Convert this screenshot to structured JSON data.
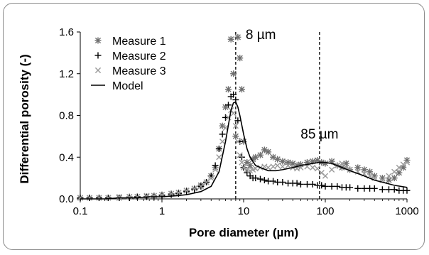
{
  "chart_data": {
    "type": "scatter",
    "title": "",
    "xlabel": "Pore diameter (µm)",
    "ylabel": "Differential porosity (-)",
    "xscale": "log",
    "xlim": [
      0.1,
      1000
    ],
    "ylim": [
      0,
      1.6
    ],
    "x_ticks": [
      "0.1",
      "1",
      "10",
      "100",
      "1000"
    ],
    "y_ticks": [
      "0.0",
      "0.4",
      "0.8",
      "1.2",
      "1.6"
    ],
    "grid": false,
    "legend_position": "top-left",
    "annotations": [
      {
        "text": "8 µm",
        "x": 8,
        "style": "dashed-vertical-line"
      },
      {
        "text": "85 µm",
        "x": 85,
        "style": "dashed-vertical-line"
      }
    ],
    "series": [
      {
        "name": "Measure 1",
        "marker": "asterisk",
        "color": "#6e6e6e",
        "x": [
          0.1,
          0.13,
          0.17,
          0.22,
          0.3,
          0.4,
          0.5,
          0.65,
          0.8,
          1.0,
          1.3,
          1.6,
          2.0,
          2.5,
          3.0,
          3.5,
          4.0,
          4.5,
          5.0,
          5.5,
          6.0,
          6.5,
          7.0,
          7.5,
          8.0,
          8.5,
          9.0,
          9.5,
          10,
          11,
          12,
          13,
          14,
          16,
          18,
          20,
          23,
          26,
          30,
          35,
          40,
          45,
          50,
          60,
          70,
          80,
          90,
          100,
          120,
          140,
          160,
          180,
          200,
          250,
          300,
          350,
          400,
          500,
          600,
          700,
          800,
          900,
          1000
        ],
        "y": [
          0.01,
          0.01,
          0.01,
          0.01,
          0.01,
          0.02,
          0.02,
          0.02,
          0.03,
          0.04,
          0.05,
          0.06,
          0.08,
          0.1,
          0.13,
          0.16,
          0.22,
          0.3,
          0.48,
          0.7,
          0.88,
          1.05,
          1.53,
          1.2,
          0.6,
          1.55,
          1.35,
          1.05,
          0.55,
          0.35,
          0.32,
          0.38,
          0.4,
          0.42,
          0.47,
          0.45,
          0.4,
          0.38,
          0.36,
          0.35,
          0.34,
          0.32,
          0.33,
          0.35,
          0.36,
          0.37,
          0.35,
          0.34,
          0.36,
          0.32,
          0.3,
          0.34,
          0.28,
          0.3,
          0.28,
          0.26,
          0.22,
          0.2,
          0.18,
          0.2,
          0.25,
          0.3,
          0.37
        ]
      },
      {
        "name": "Measure 2",
        "marker": "plus",
        "color": "#000000",
        "x": [
          0.1,
          0.13,
          0.17,
          0.22,
          0.3,
          0.4,
          0.5,
          0.65,
          0.8,
          1.0,
          1.3,
          1.6,
          2.0,
          2.5,
          3.0,
          3.5,
          4.0,
          4.5,
          5.0,
          5.5,
          6.0,
          6.5,
          7.0,
          7.5,
          8.0,
          8.5,
          9.0,
          9.5,
          10,
          11,
          12,
          13,
          14,
          16,
          18,
          20,
          23,
          26,
          30,
          35,
          40,
          45,
          50,
          60,
          70,
          80,
          90,
          100,
          120,
          140,
          160,
          180,
          200,
          250,
          300,
          350,
          400,
          500,
          600,
          700,
          800,
          900,
          1000
        ],
        "y": [
          0.01,
          0.01,
          0.01,
          0.01,
          0.01,
          0.01,
          0.02,
          0.02,
          0.02,
          0.03,
          0.04,
          0.05,
          0.07,
          0.09,
          0.12,
          0.16,
          0.22,
          0.32,
          0.48,
          0.62,
          0.78,
          0.9,
          0.98,
          1.0,
          0.95,
          0.75,
          0.55,
          0.4,
          0.3,
          0.25,
          0.22,
          0.2,
          0.2,
          0.19,
          0.18,
          0.17,
          0.17,
          0.16,
          0.16,
          0.15,
          0.15,
          0.15,
          0.14,
          0.14,
          0.14,
          0.13,
          0.13,
          0.12,
          0.12,
          0.12,
          0.11,
          0.11,
          0.11,
          0.1,
          0.1,
          0.1,
          0.1,
          0.09,
          0.09,
          0.09,
          0.08,
          0.08,
          0.08
        ]
      },
      {
        "name": "Measure 3",
        "marker": "cross",
        "color": "#9a9a9a",
        "x": [
          0.1,
          0.13,
          0.17,
          0.22,
          0.3,
          0.4,
          0.5,
          0.65,
          0.8,
          1.0,
          1.3,
          1.6,
          2.0,
          2.5,
          3.0,
          3.5,
          4.0,
          4.5,
          5.0,
          5.5,
          6.0,
          6.5,
          7.0,
          7.5,
          8.0,
          8.5,
          9.0,
          9.5,
          10,
          11,
          12,
          13,
          14,
          16,
          18,
          20,
          23,
          26,
          30,
          35,
          40,
          45,
          50,
          60,
          70,
          80,
          90,
          100,
          120,
          140,
          160,
          180,
          200,
          250,
          300,
          350,
          400,
          500,
          600,
          700,
          800,
          900,
          1000
        ],
        "y": [
          0.01,
          0.01,
          0.01,
          0.01,
          0.02,
          0.02,
          0.02,
          0.03,
          0.03,
          0.04,
          0.05,
          0.06,
          0.08,
          0.1,
          0.12,
          0.16,
          0.2,
          0.28,
          0.4,
          0.55,
          0.68,
          0.78,
          0.85,
          0.82,
          0.7,
          0.55,
          0.42,
          0.35,
          0.3,
          0.28,
          0.27,
          0.28,
          0.29,
          0.3,
          0.31,
          0.3,
          0.31,
          0.32,
          0.31,
          0.32,
          0.3,
          0.29,
          0.3,
          0.31,
          0.3,
          0.29,
          0.25,
          0.22,
          0.28,
          0.32,
          0.34,
          0.3,
          0.28,
          0.26,
          0.24,
          0.22,
          0.2,
          0.18,
          0.22,
          0.26,
          0.3,
          0.33,
          0.35
        ]
      },
      {
        "name": "Model",
        "marker": "line",
        "color": "#000000",
        "x": [
          0.1,
          0.2,
          0.3,
          0.5,
          0.7,
          1.0,
          1.5,
          2.0,
          3.0,
          4.0,
          5.0,
          6.0,
          7.0,
          7.5,
          8.0,
          8.5,
          9.0,
          10,
          11,
          12,
          14,
          16,
          20,
          25,
          30,
          40,
          50,
          60,
          70,
          85,
          100,
          120,
          150,
          200,
          300,
          400,
          500,
          700,
          1000
        ],
        "y": [
          0.0,
          0.0,
          0.01,
          0.01,
          0.02,
          0.02,
          0.03,
          0.04,
          0.07,
          0.12,
          0.26,
          0.55,
          0.85,
          0.92,
          0.93,
          0.88,
          0.8,
          0.62,
          0.48,
          0.4,
          0.32,
          0.3,
          0.27,
          0.27,
          0.28,
          0.3,
          0.32,
          0.33,
          0.34,
          0.35,
          0.35,
          0.34,
          0.31,
          0.27,
          0.22,
          0.18,
          0.16,
          0.13,
          0.11
        ]
      }
    ]
  }
}
